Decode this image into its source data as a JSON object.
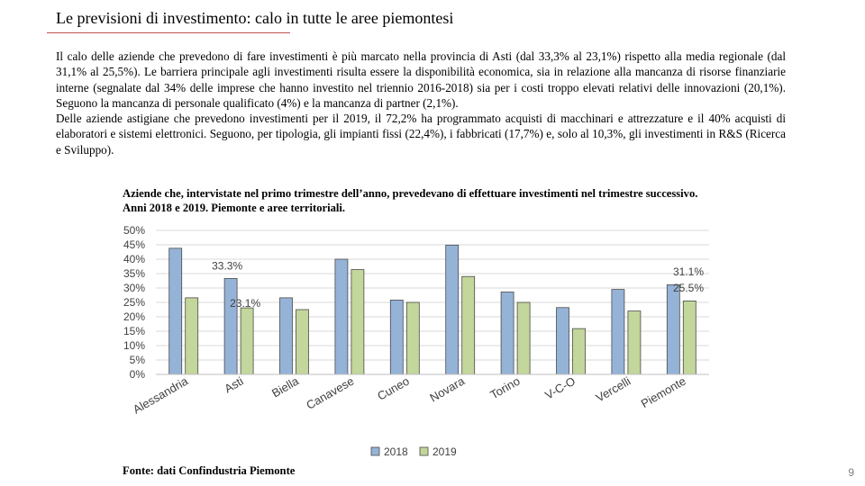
{
  "page": {
    "title": "Le previsioni di investimento: calo in tutte le aree piemontesi",
    "paragraph_1": "Il calo delle aziende che prevedono di fare investimenti è più marcato nella provincia di Asti (dal 33,3% al 23,1%) rispetto alla media regionale (dal 31,1% al 25,5%). Le barriera principale agli investimenti risulta essere la disponibilità economica, sia in relazione alla mancanza di risorse finanziarie interne (segnalate dal 34% delle imprese che hanno investito nel triennio 2016-2018) sia per i costi troppo elevati relativi delle innovazioni (20,1%). Seguono la mancanza di personale qualificato (4%) e la mancanza di partner (2,1%).",
    "paragraph_2": "Delle aziende astigiane che prevedono investimenti per il 2019, il 72,2% ha programmato acquisti di macchinari e attrezzature e il 40% acquisti di elaboratori e sistemi elettronici. Seguono, per tipologia, gli impianti fissi (22,4%), i fabbricati (17,7%) e, solo al 10,3%, gli investimenti in R&S (Ricerca e Sviluppo).",
    "source": "Fonte: dati Confindustria Piemonte",
    "page_number": "9"
  },
  "chart_data": {
    "type": "bar",
    "title": "Aziende che, intervistate nel primo trimestre dell’anno, prevedevano di effettuare investimenti nel trimestre successivo. Anni 2018 e 2019. Piemonte e aree territoriali.",
    "categories": [
      "Alessandria",
      "Asti",
      "Biella",
      "Canavese",
      "Cuneo",
      "Novara",
      "Torino",
      "V-C-O",
      "Vercelli",
      "Piemonte"
    ],
    "series": [
      {
        "name": "2018",
        "color": "#95b3d7",
        "values": [
          43.8,
          33.3,
          26.6,
          40.0,
          25.8,
          44.9,
          28.6,
          23.2,
          29.5,
          31.1
        ]
      },
      {
        "name": "2019",
        "color": "#c3d69b",
        "values": [
          26.6,
          23.1,
          22.5,
          36.4,
          25.0,
          34.0,
          25.0,
          15.9,
          22.0,
          25.5
        ]
      }
    ],
    "y_ticks": [
      "0%",
      "5%",
      "10%",
      "15%",
      "20%",
      "25%",
      "30%",
      "35%",
      "40%",
      "45%",
      "50%"
    ],
    "ylim": [
      0,
      50
    ],
    "data_labels": [
      {
        "category": "Asti",
        "series": "2018",
        "text": "33.3%"
      },
      {
        "category": "Asti",
        "series": "2019",
        "text": "23.1%"
      },
      {
        "category": "Piemonte",
        "series": "2018",
        "text": "31.1%"
      },
      {
        "category": "Piemonte",
        "series": "2019",
        "text": "25.5%"
      }
    ],
    "legend": "bottom-center",
    "grid": true,
    "xlabel": "",
    "ylabel": ""
  }
}
